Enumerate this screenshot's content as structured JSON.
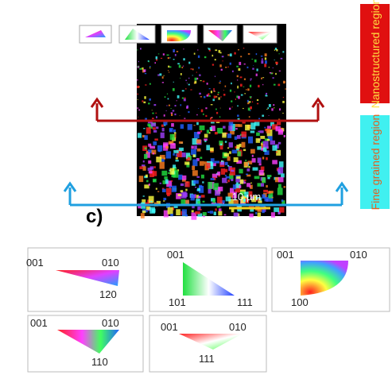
{
  "figure": {
    "panel_label": "c)",
    "regions": {
      "top": "Nanostructured region",
      "bottom": "Fine grained region"
    },
    "scale_bar": "10 µm",
    "legends": [
      {
        "labels": [
          "001",
          "010",
          "120"
        ]
      },
      {
        "labels": [
          "001",
          "101",
          "111"
        ]
      },
      {
        "labels": [
          "001",
          "010",
          "100"
        ]
      },
      {
        "labels": [
          "001",
          "010",
          "110"
        ]
      },
      {
        "labels": [
          "001",
          "010",
          "111"
        ]
      }
    ]
  }
}
